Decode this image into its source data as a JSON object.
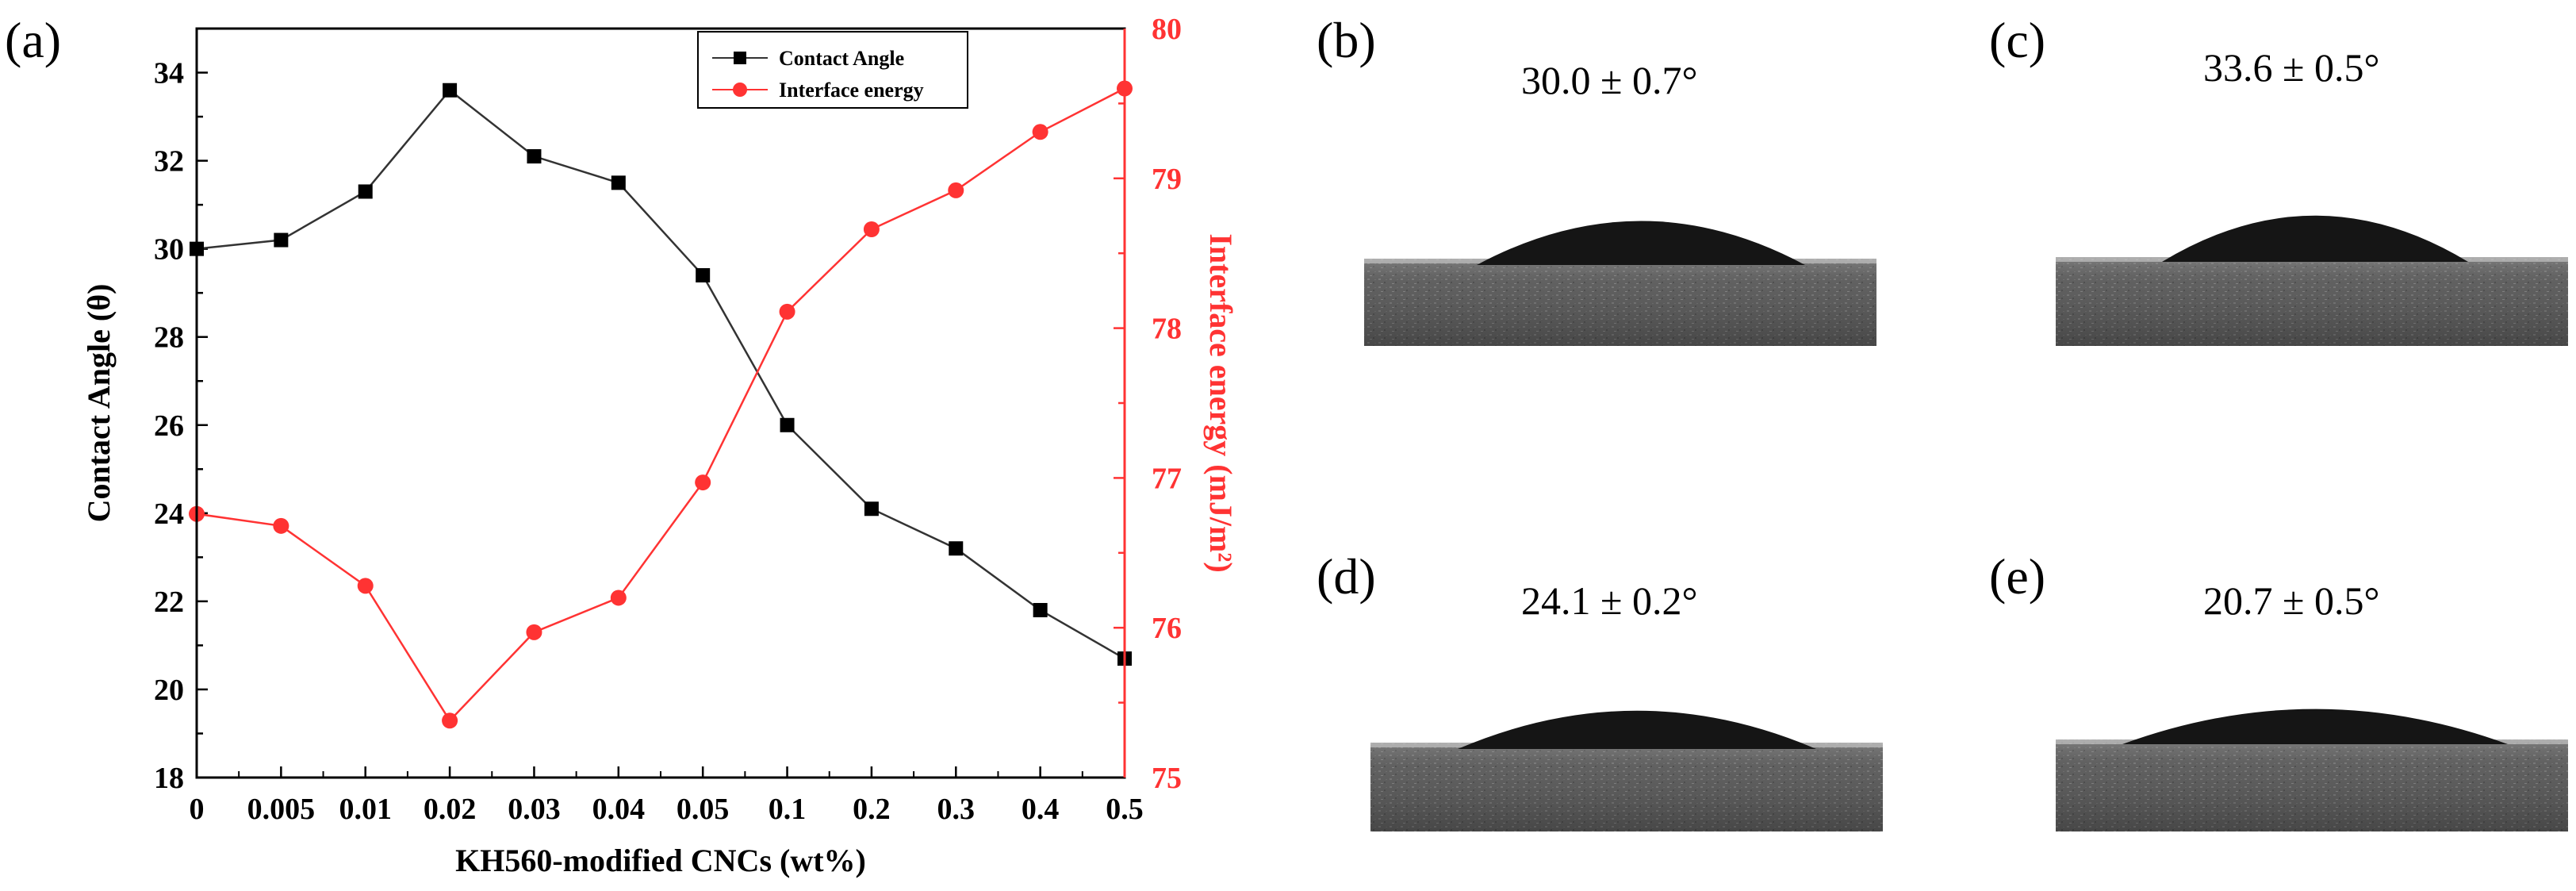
{
  "panels": {
    "a": "(a)",
    "b": "(b)",
    "c": "(c)",
    "d": "(d)",
    "e": "(e)"
  },
  "colors": {
    "contact_angle": "#333333",
    "interface_energy": "#ff3333",
    "axis": "#000000",
    "image_base": "#5c5c5c",
    "droplet": "#151515"
  },
  "chart_data": {
    "type": "line",
    "categories": [
      "0",
      "0.005",
      "0.01",
      "0.02",
      "0.03",
      "0.04",
      "0.05",
      "0.1",
      "0.2",
      "0.3",
      "0.4",
      "0.5"
    ],
    "xlabel": "KH560-modified CNCs (wt%)",
    "ylabel_left": "Contact Angle (θ)",
    "ylabel_right": "Interface energy (mJ/m²)",
    "ylim_left": [
      18,
      35
    ],
    "ylim_right": [
      75,
      80
    ],
    "yticks_left": [
      "18",
      "20",
      "22",
      "24",
      "26",
      "28",
      "30",
      "32",
      "34"
    ],
    "yticks_right": [
      "75",
      "76",
      "77",
      "78",
      "79",
      "80"
    ],
    "legend_position": "top-right",
    "series": [
      {
        "name": "Contact Angle",
        "axis": "left",
        "marker": "square",
        "values": [
          30.0,
          30.2,
          31.3,
          33.6,
          32.1,
          31.5,
          29.4,
          26.0,
          24.1,
          23.2,
          21.8,
          20.7
        ]
      },
      {
        "name": "Interface energy",
        "axis": "right",
        "marker": "circle",
        "values": [
          76.76,
          76.68,
          76.28,
          75.38,
          75.97,
          76.2,
          76.97,
          78.11,
          78.66,
          78.92,
          79.31,
          79.6
        ]
      }
    ]
  },
  "droplet_images": [
    {
      "id": "b",
      "angle_label": "30.0 ± 0.7°",
      "contact_angle": 30.0
    },
    {
      "id": "c",
      "angle_label": "33.6 ± 0.5°",
      "contact_angle": 33.6
    },
    {
      "id": "d",
      "angle_label": "24.1 ± 0.2°",
      "contact_angle": 24.1
    },
    {
      "id": "e",
      "angle_label": "20.7 ± 0.5°",
      "contact_angle": 20.7
    }
  ]
}
